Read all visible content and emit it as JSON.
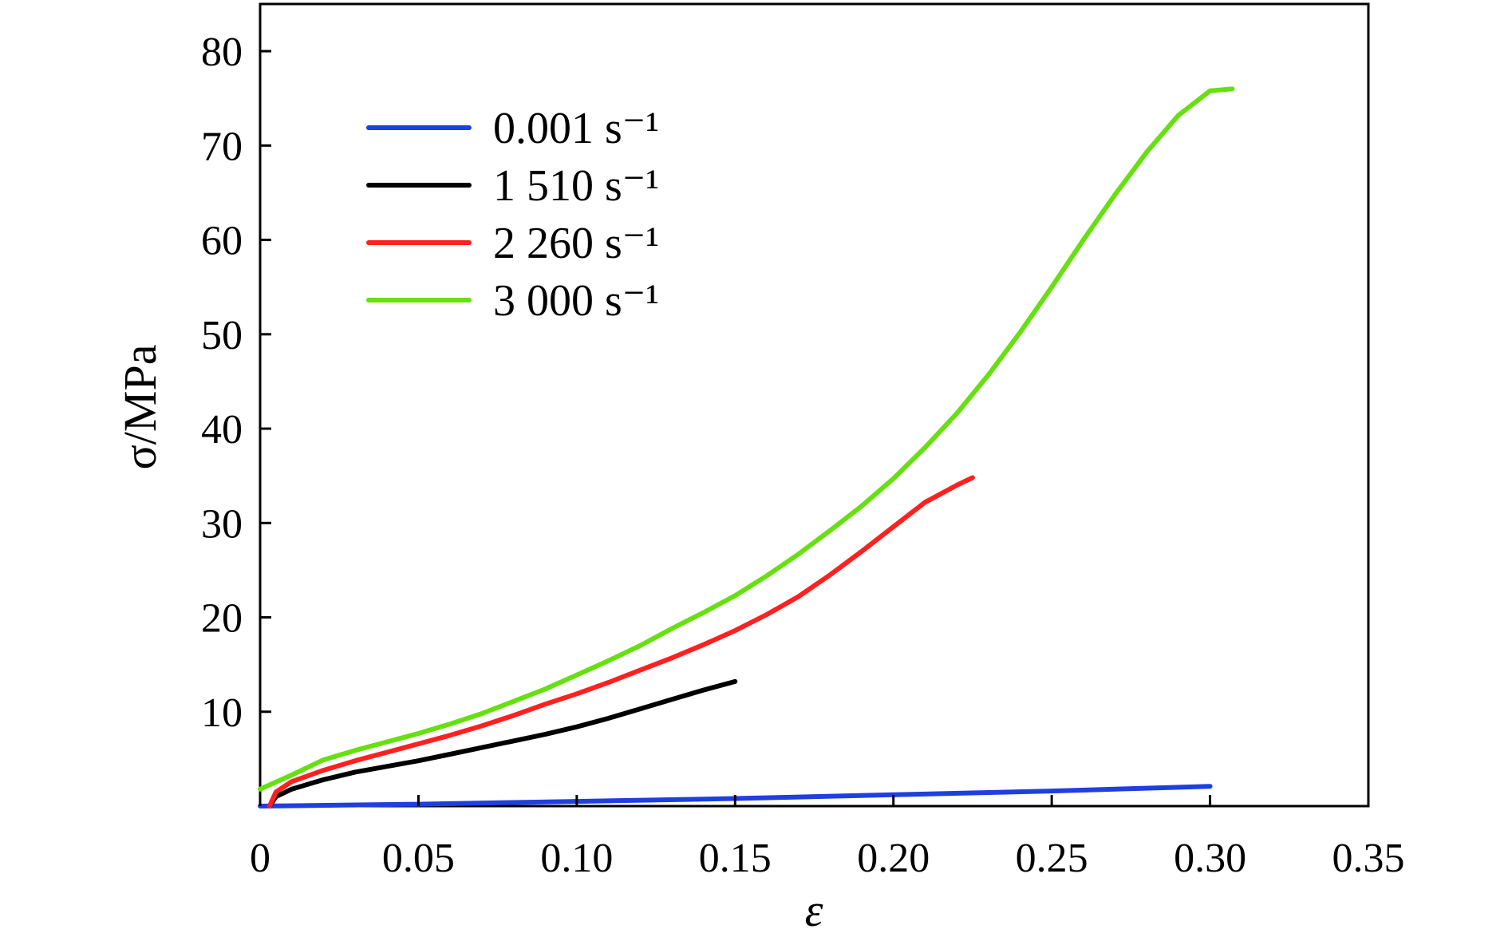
{
  "chart_data": {
    "type": "line",
    "title": "",
    "xlabel": "ε",
    "ylabel": "σ/MPa",
    "xlim": [
      0,
      0.35
    ],
    "ylim": [
      0,
      85
    ],
    "x_ticks": [
      0,
      0.05,
      0.1,
      0.15,
      0.2,
      0.25,
      0.3,
      0.35
    ],
    "x_tick_labels": [
      "0",
      "0.05",
      "0.10",
      "0.15",
      "0.20",
      "0.25",
      "0.30",
      "0.35"
    ],
    "y_ticks": [
      10,
      20,
      30,
      40,
      50,
      60,
      70,
      80
    ],
    "y_tick_labels": [
      "10",
      "20",
      "30",
      "40",
      "50",
      "60",
      "70",
      "80"
    ],
    "grid": false,
    "legend_position": "top-left",
    "series": [
      {
        "name": "0.001 s⁻¹",
        "color": "#1f3fe0",
        "x": [
          0,
          0.05,
          0.1,
          0.15,
          0.2,
          0.25,
          0.3
        ],
        "y": [
          0,
          0.2,
          0.5,
          0.8,
          1.2,
          1.6,
          2.1
        ]
      },
      {
        "name": "1 510 s⁻¹",
        "color": "#000000",
        "x": [
          0.003,
          0.005,
          0.01,
          0.02,
          0.03,
          0.04,
          0.05,
          0.06,
          0.07,
          0.08,
          0.09,
          0.1,
          0.11,
          0.12,
          0.13,
          0.14,
          0.15
        ],
        "y": [
          0,
          1.0,
          1.8,
          2.8,
          3.6,
          4.2,
          4.8,
          5.5,
          6.2,
          6.9,
          7.6,
          8.4,
          9.3,
          10.3,
          11.3,
          12.3,
          13.2
        ]
      },
      {
        "name": "2 260 s⁻¹",
        "color": "#ff2020",
        "x": [
          0.003,
          0.005,
          0.01,
          0.02,
          0.03,
          0.04,
          0.05,
          0.06,
          0.07,
          0.08,
          0.09,
          0.1,
          0.11,
          0.12,
          0.13,
          0.14,
          0.15,
          0.16,
          0.17,
          0.18,
          0.19,
          0.2,
          0.21,
          0.22,
          0.225
        ],
        "y": [
          0,
          1.5,
          2.6,
          3.8,
          4.8,
          5.7,
          6.6,
          7.5,
          8.5,
          9.6,
          10.8,
          11.9,
          13.1,
          14.4,
          15.7,
          17.1,
          18.6,
          20.3,
          22.2,
          24.5,
          27.0,
          29.6,
          32.2,
          34.0,
          34.8
        ]
      },
      {
        "name": "3 000 s⁻¹",
        "color": "#66e010",
        "x": [
          0,
          0.01,
          0.02,
          0.03,
          0.04,
          0.05,
          0.06,
          0.07,
          0.08,
          0.09,
          0.1,
          0.11,
          0.12,
          0.13,
          0.14,
          0.15,
          0.16,
          0.17,
          0.18,
          0.19,
          0.2,
          0.21,
          0.22,
          0.23,
          0.24,
          0.25,
          0.26,
          0.27,
          0.28,
          0.29,
          0.3,
          0.307
        ],
        "y": [
          1.8,
          3.3,
          4.9,
          5.9,
          6.8,
          7.7,
          8.7,
          9.8,
          11.1,
          12.4,
          13.9,
          15.4,
          17.0,
          18.8,
          20.5,
          22.3,
          24.4,
          26.7,
          29.2,
          31.8,
          34.7,
          38.0,
          41.6,
          45.7,
          50.2,
          55.0,
          60.0,
          64.8,
          69.3,
          73.2,
          75.8,
          76.0
        ]
      }
    ]
  }
}
